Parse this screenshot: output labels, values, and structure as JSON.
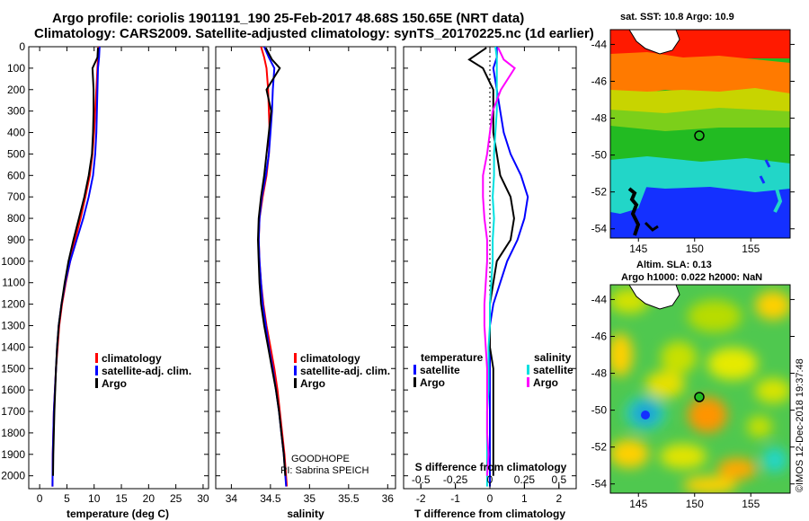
{
  "title": {
    "line1": "Argo profile: coriolis 1901191_190 25-Feb-2017 48.68S 150.65E (NRT data)",
    "line2": "Climatology: CARS2009. Satellite-adjusted climatology: synTS_20170225.nc (1d earlier)"
  },
  "colors": {
    "climatology": "#ff0000",
    "satellite": "#0000ff",
    "argo": "#000000",
    "sal_satellite": "#00e0e0",
    "sal_argo": "#ff00ff"
  },
  "depth_axis": {
    "ticks": [
      0,
      100,
      200,
      300,
      400,
      500,
      600,
      700,
      800,
      900,
      1000,
      1100,
      1200,
      1300,
      1400,
      1500,
      1600,
      1700,
      1800,
      1900,
      2000
    ],
    "range": [
      0,
      2060
    ]
  },
  "panel_temp": {
    "xlabel": "temperature (deg C)",
    "xticks": [
      "0",
      "5",
      "10",
      "15",
      "20",
      "25",
      "30"
    ],
    "xrange": [
      -2,
      31
    ],
    "legend": [
      "climatology",
      "satellite-adj. clim.",
      "Argo"
    ]
  },
  "panel_sal": {
    "xlabel": "salinity",
    "xticks": [
      "34",
      "34.5",
      "35",
      "35.5",
      "36"
    ],
    "xrange": [
      33.8,
      36.1
    ],
    "legend": [
      "climatology",
      "satellite-adj. clim.",
      "Argo"
    ],
    "note1": "GOODHOPE",
    "note2": "PI: Sabrina SPEICH"
  },
  "panel_diff": {
    "xlabel": "T difference from climatology",
    "xticks": [
      "-2",
      "-1",
      "0",
      "1",
      "2"
    ],
    "xrange": [
      -2.5,
      2.5
    ],
    "top_label": "S difference from climatology",
    "top_ticks": [
      "-0.5",
      "-0.25",
      "0",
      "0.25",
      "0.5"
    ],
    "legend_temp_header": "temperature",
    "legend_sal_header": "salinity",
    "legend_temp": [
      "satellite",
      "Argo"
    ],
    "legend_sal": [
      "satellite",
      "Argo"
    ]
  },
  "map_sst": {
    "title": "sat. SST: 10.8 Argo: 10.9",
    "yticks": [
      "-44",
      "-46",
      "-48",
      "-50",
      "-52",
      "-54"
    ],
    "xticks": [
      "145",
      "150",
      "155"
    ]
  },
  "map_sla": {
    "title1": "Altim. SLA: 0.13",
    "title2": "Argo h1000: 0.022 h2000: NaN",
    "yticks": [
      "-44",
      "-46",
      "-48",
      "-50",
      "-52",
      "-54"
    ],
    "xticks": [
      "145",
      "150",
      "155"
    ]
  },
  "credit": "©IMOS 12-Dec-2018 19:37:48",
  "chart_data": [
    {
      "type": "line",
      "title": "",
      "xlabel": "temperature (deg C)",
      "ylabel": "",
      "xlim": [
        -2,
        31
      ],
      "ylim": [
        2060,
        0
      ],
      "series": [
        {
          "name": "climatology",
          "x": [
            10.8,
            10.7,
            10.6,
            10.4,
            10.2,
            10.0,
            9.7,
            9.2,
            8.4,
            7.5,
            6.5,
            5.6,
            4.8,
            4.1,
            3.6,
            3.3,
            3.0,
            2.8,
            2.6,
            2.5,
            2.4,
            2.35
          ],
          "y": [
            0,
            50,
            100,
            200,
            300,
            400,
            500,
            600,
            700,
            800,
            900,
            1000,
            1100,
            1200,
            1300,
            1400,
            1500,
            1600,
            1700,
            1800,
            1900,
            2050
          ]
        },
        {
          "name": "satellite-adj. clim.",
          "x": [
            11.0,
            10.9,
            10.7,
            10.6,
            10.5,
            10.4,
            10.2,
            9.8,
            9.0,
            8.0,
            6.8,
            5.6,
            4.7,
            4.0,
            3.5,
            3.2,
            3.0,
            2.8,
            2.6,
            2.5,
            2.4,
            2.35
          ],
          "y": [
            0,
            50,
            100,
            200,
            300,
            400,
            500,
            600,
            700,
            800,
            900,
            1000,
            1100,
            1200,
            1300,
            1400,
            1500,
            1600,
            1700,
            1800,
            1900,
            2050
          ]
        },
        {
          "name": "Argo",
          "x": [
            10.7,
            10.6,
            9.7,
            9.9,
            9.9,
            9.8,
            9.6,
            9.0,
            8.2,
            7.2,
            6.2,
            5.3,
            4.6,
            4.0,
            3.5,
            3.2,
            3.0,
            2.85,
            2.7,
            2.6,
            2.5,
            2.45
          ],
          "y": [
            5,
            50,
            100,
            200,
            300,
            400,
            500,
            600,
            700,
            800,
            900,
            1000,
            1100,
            1200,
            1300,
            1400,
            1500,
            1600,
            1700,
            1800,
            1900,
            2000
          ]
        }
      ]
    },
    {
      "type": "line",
      "title": "",
      "xlabel": "salinity",
      "ylabel": "",
      "xlim": [
        33.8,
        36.1
      ],
      "ylim": [
        2060,
        0
      ],
      "series": [
        {
          "name": "climatology",
          "x": [
            34.38,
            34.42,
            34.45,
            34.47,
            34.48,
            34.49,
            34.48,
            34.45,
            34.4,
            34.36,
            34.35,
            34.36,
            34.38,
            34.41,
            34.45,
            34.5,
            34.55,
            34.59,
            34.62,
            34.65,
            34.68,
            34.71
          ],
          "y": [
            0,
            50,
            100,
            200,
            300,
            400,
            500,
            600,
            700,
            800,
            900,
            1000,
            1100,
            1200,
            1300,
            1400,
            1500,
            1600,
            1700,
            1800,
            1900,
            2050
          ]
        },
        {
          "name": "satellite-adj. clim.",
          "x": [
            34.42,
            34.48,
            34.55,
            34.53,
            34.52,
            34.5,
            34.48,
            34.44,
            34.39,
            34.36,
            34.35,
            34.36,
            34.38,
            34.4,
            34.44,
            34.48,
            34.53,
            34.57,
            34.61,
            34.64,
            34.67,
            34.7
          ],
          "y": [
            0,
            50,
            100,
            200,
            300,
            400,
            500,
            600,
            700,
            800,
            900,
            1000,
            1100,
            1200,
            1300,
            1400,
            1500,
            1600,
            1700,
            1800,
            1900,
            2050
          ]
        },
        {
          "name": "Argo",
          "x": [
            34.44,
            34.52,
            34.62,
            34.45,
            34.51,
            34.48,
            34.45,
            34.42,
            34.38,
            34.35,
            34.34,
            34.35,
            34.36,
            34.38,
            34.42,
            34.47,
            34.52,
            34.57,
            34.61,
            34.64,
            34.67,
            34.69
          ],
          "y": [
            5,
            60,
            100,
            200,
            300,
            400,
            500,
            600,
            700,
            800,
            900,
            1000,
            1100,
            1200,
            1300,
            1400,
            1500,
            1600,
            1700,
            1800,
            1900,
            2000
          ]
        }
      ]
    },
    {
      "type": "line",
      "title": "",
      "xlabel": "T difference from climatology",
      "top_xlabel": "S difference from climatology",
      "ylabel": "",
      "xlim": [
        -2.5,
        2.5
      ],
      "ylim": [
        2060,
        0
      ],
      "series": [
        {
          "name": "temperature satellite",
          "x": [
            0.2,
            0.2,
            0.1,
            0.2,
            0.3,
            0.4,
            0.6,
            0.9,
            1.1,
            1.0,
            0.8,
            0.5,
            0.3,
            0.1,
            0.0,
            0.0,
            0.0,
            0.0,
            0.0,
            0.0,
            0.0,
            0.0
          ],
          "y": [
            0,
            50,
            100,
            200,
            300,
            400,
            500,
            600,
            700,
            800,
            900,
            1000,
            1100,
            1200,
            1300,
            1400,
            1500,
            1600,
            1700,
            1800,
            1900,
            2050
          ]
        },
        {
          "name": "temperature Argo",
          "x": [
            -0.1,
            -0.6,
            -0.2,
            0.1,
            0.1,
            0.1,
            0.2,
            0.3,
            0.6,
            0.7,
            0.6,
            0.2,
            0.1,
            0.0,
            0.0,
            0.0,
            0.1,
            0.1,
            0.1,
            0.1,
            0.1,
            0.1
          ],
          "y": [
            5,
            60,
            100,
            200,
            300,
            400,
            500,
            600,
            700,
            800,
            900,
            1000,
            1100,
            1200,
            1300,
            1400,
            1500,
            1600,
            1700,
            1800,
            1900,
            2000
          ]
        },
        {
          "name": "salinity satellite",
          "x": [
            0.04,
            0.05,
            0.05,
            0.05,
            0.05,
            0.04,
            0.03,
            0.03,
            0.02,
            0.03,
            0.02,
            0.02,
            0.01,
            0.0,
            0.0,
            -0.01,
            -0.01,
            -0.01,
            -0.02,
            -0.02,
            -0.02,
            -0.02
          ],
          "y": [
            0,
            50,
            100,
            200,
            300,
            400,
            500,
            600,
            700,
            800,
            900,
            1000,
            1100,
            1200,
            1300,
            1400,
            1500,
            1600,
            1700,
            1800,
            1900,
            2050
          ]
        },
        {
          "name": "salinity Argo",
          "x": [
            0.06,
            0.1,
            0.18,
            0.08,
            0.02,
            0.0,
            -0.02,
            -0.05,
            -0.05,
            -0.04,
            -0.02,
            -0.02,
            -0.03,
            -0.04,
            -0.04,
            -0.03,
            -0.02,
            -0.02,
            -0.02,
            -0.02,
            -0.01,
            -0.02
          ],
          "y": [
            5,
            60,
            100,
            200,
            300,
            400,
            500,
            600,
            700,
            800,
            900,
            1000,
            1100,
            1200,
            1300,
            1400,
            1500,
            1600,
            1700,
            1800,
            1900,
            2000
          ]
        }
      ]
    }
  ]
}
